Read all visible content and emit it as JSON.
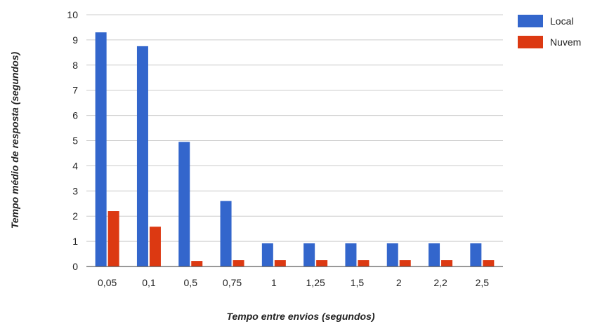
{
  "chart_data": {
    "type": "bar",
    "title": "",
    "xlabel": "Tempo entre envios (segundos)",
    "ylabel": "Tempo médio de resposta (segundos)",
    "ylim": [
      0,
      10
    ],
    "yticks": [
      "0",
      "1",
      "2",
      "3",
      "4",
      "5",
      "6",
      "7",
      "8",
      "9",
      "10"
    ],
    "grid": true,
    "legend_position": "right",
    "categories": [
      "0,05",
      "0,1",
      "0,5",
      "0,75",
      "1",
      "1,25",
      "1,5",
      "2",
      "2,2",
      "2,5"
    ],
    "series": [
      {
        "name": "Local",
        "color": "#3366cc",
        "values": [
          9.3,
          8.75,
          4.95,
          2.6,
          0.92,
          0.92,
          0.92,
          0.92,
          0.92,
          0.92
        ]
      },
      {
        "name": "Nuvem",
        "color": "#dc3912",
        "values": [
          2.2,
          1.58,
          0.22,
          0.25,
          0.25,
          0.25,
          0.25,
          0.25,
          0.25,
          0.25
        ]
      }
    ]
  }
}
